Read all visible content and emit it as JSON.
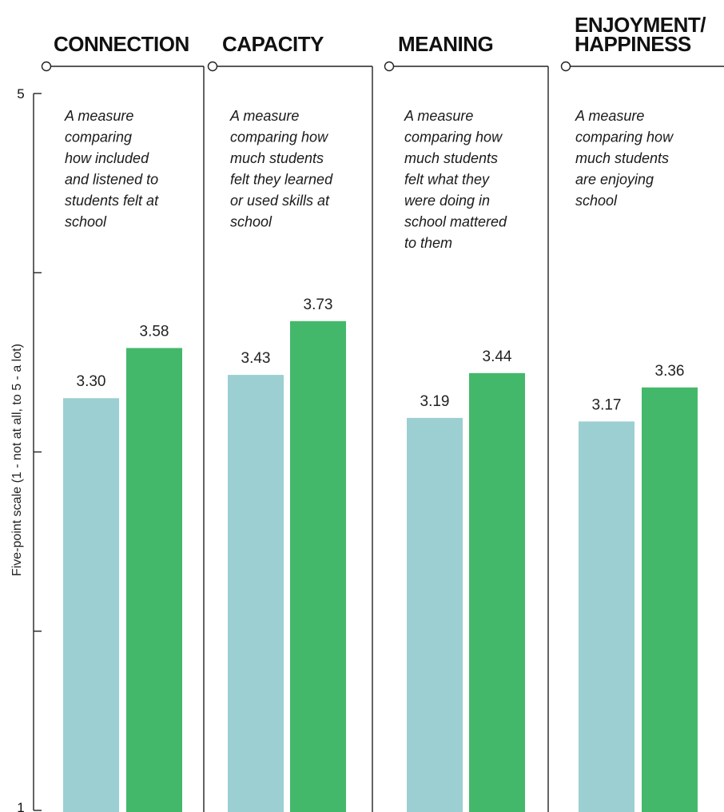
{
  "chart_data": {
    "type": "bar",
    "ylabel": "Five-point scale (1 - not at all, to 5 - a lot)",
    "ylim": [
      1,
      5
    ],
    "yticks_labeled": [
      "5",
      "1"
    ],
    "colors": {
      "series_a": "#9ccfd2",
      "series_b": "#44b86a"
    },
    "categories": [
      {
        "title_lines": [
          "CONNECTION"
        ],
        "description_lines": [
          "A measure",
          "comparing",
          "how included",
          "and listened to",
          "students felt at",
          "school"
        ],
        "values": [
          3.3,
          3.58
        ],
        "labels": [
          "3.30",
          "3.58"
        ]
      },
      {
        "title_lines": [
          "CAPACITY"
        ],
        "description_lines": [
          "A measure",
          "comparing how",
          "much students",
          "felt they learned",
          "or used skills at",
          "school"
        ],
        "values": [
          3.43,
          3.73
        ],
        "labels": [
          "3.43",
          "3.73"
        ]
      },
      {
        "title_lines": [
          "MEANING"
        ],
        "description_lines": [
          "A measure",
          "comparing how",
          "much students",
          "felt what they",
          "were doing in",
          "school mattered",
          "to them"
        ],
        "values": [
          3.19,
          3.44
        ],
        "labels": [
          "3.19",
          "3.44"
        ]
      },
      {
        "title_lines": [
          "ENJOYMENT/",
          "HAPPINESS"
        ],
        "description_lines": [
          "A measure",
          "comparing how",
          "much students",
          "are enjoying",
          "school"
        ],
        "values": [
          3.17,
          3.36
        ],
        "labels": [
          "3.17",
          "3.36"
        ]
      }
    ]
  }
}
